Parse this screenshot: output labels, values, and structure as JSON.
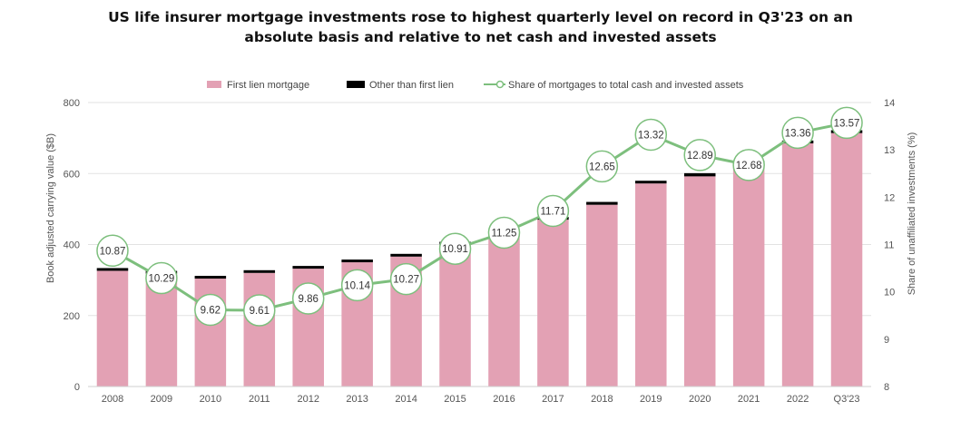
{
  "title": {
    "line1": "US life insurer mortgage investments rose to highest quarterly level on record in Q3'23 on an",
    "line2": "absolute basis and relative to net cash and invested assets"
  },
  "chart_data": {
    "type": "bar",
    "stacked": true,
    "categories": [
      "2008",
      "2009",
      "2010",
      "2011",
      "2012",
      "2013",
      "2014",
      "2015",
      "2016",
      "2017",
      "2018",
      "2019",
      "2020",
      "2021",
      "2022",
      "Q3'23"
    ],
    "series": [
      {
        "name": "First lien mortgage",
        "type": "bar",
        "axis": "left",
        "color": "#e3a1b4",
        "values": [
          326,
          318,
          304,
          320,
          332,
          350,
          366,
          400,
          432,
          470,
          512,
          572,
          592,
          628,
          685,
          714
        ]
      },
      {
        "name": "Other than first lien",
        "type": "bar",
        "axis": "left",
        "color": "#000000",
        "values": [
          3,
          2,
          3,
          3,
          4,
          4,
          6,
          4,
          4,
          6,
          8,
          7,
          9,
          7,
          8,
          8
        ]
      },
      {
        "name": "Share of mortgages to total cash and invested assets",
        "type": "line",
        "axis": "right",
        "color": "#7dbf7d",
        "values": [
          10.87,
          10.29,
          9.62,
          9.61,
          9.86,
          10.14,
          10.27,
          10.91,
          11.25,
          11.71,
          12.65,
          13.32,
          12.89,
          12.68,
          13.36,
          13.57
        ],
        "labels": [
          "10.87",
          "10.29",
          "9.62",
          "9.61",
          "9.86",
          "10.14",
          "10.27",
          "10.91",
          "11.25",
          "11.71",
          "12.65",
          "13.32",
          "12.89",
          "12.68",
          "13.36",
          "13.57"
        ]
      }
    ],
    "ylabel": "Book adjusted carrying value ($B)",
    "y2label": "Share of unaffiliated investments (%)",
    "ylim": [
      0,
      800
    ],
    "yticks": [
      "0",
      "200",
      "400",
      "600",
      "800"
    ],
    "y2lim": [
      8,
      14
    ],
    "y2ticks": [
      "8",
      "9",
      "10",
      "11",
      "12",
      "13",
      "14"
    ],
    "grid": true,
    "legend_position": "top"
  }
}
